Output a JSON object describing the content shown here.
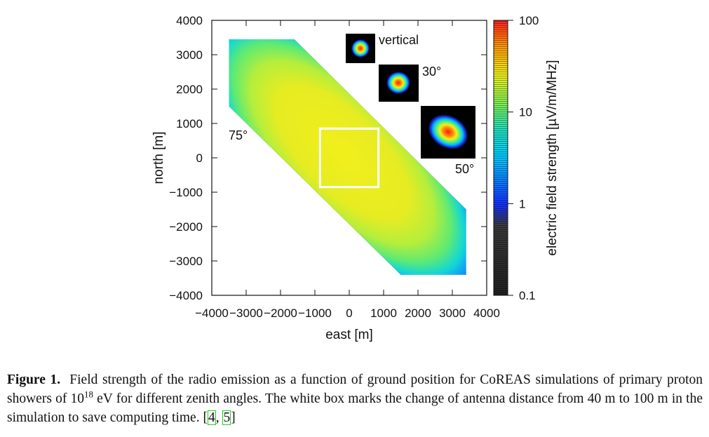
{
  "chart_data": {
    "type": "heatmap",
    "x_axis": {
      "label": "east [m]",
      "range": [
        -4000,
        4000
      ],
      "ticks": [
        "−4000",
        "−3000",
        "−2000",
        "−1000",
        "0",
        "1000",
        "2000",
        "3000",
        "4000"
      ]
    },
    "y_axis": {
      "label": "north [m]",
      "range": [
        -4000,
        4000
      ],
      "ticks": [
        "4000",
        "3000",
        "2000",
        "1000",
        "0",
        "−1000",
        "−2000",
        "−3000",
        "−4000"
      ]
    },
    "colorbar": {
      "label": "electric field strength [µV/m/MHz]",
      "scale": "log",
      "range": [
        0.1,
        100
      ],
      "ticks": [
        "100",
        "10",
        "1",
        "0.1"
      ],
      "colors": [
        "#202020",
        "#1530ff",
        "#00c8ff",
        "#20e0c0",
        "#80f050",
        "#f0f020",
        "#ffa000",
        "#ff2020"
      ]
    },
    "footprint_75": {
      "label": "75°",
      "polygon": [
        [
          -3500,
          3450
        ],
        [
          -1600,
          3450
        ],
        [
          3400,
          -1500
        ],
        [
          3400,
          -3400
        ],
        [
          1500,
          -3400
        ],
        [
          -3500,
          1500
        ]
      ]
    },
    "annotation_box": {
      "x": [
        -850,
        850
      ],
      "y": [
        -850,
        850
      ],
      "color": "#ffffff"
    },
    "insets": [
      {
        "label": "vertical"
      },
      {
        "label": "30°"
      },
      {
        "label": "50°"
      }
    ]
  },
  "caption": {
    "figure_label": "Figure 1.",
    "text_before_sup": "Field strength of the radio emission as a function of ground position for CoREAS simulations of primary proton showers of 10",
    "sup": "18",
    "text_after_sup": " eV for different zenith angles.  The white box marks the change of antenna distance from 40 m to 100 m in the simulation to save computing time. [",
    "ref1": "4",
    "ref_sep": ", ",
    "ref2": "5",
    "text_end": "]"
  }
}
